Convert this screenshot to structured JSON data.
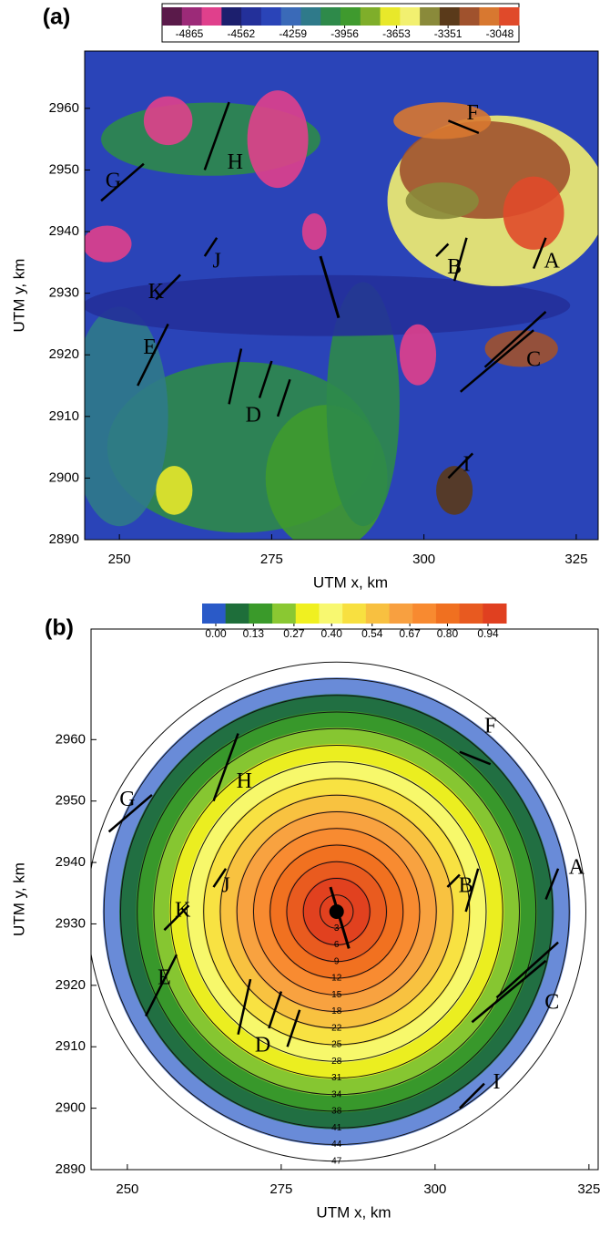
{
  "chart_data": [
    {
      "type": "map",
      "panel_label": "(a)",
      "xlabel": "UTM x, km",
      "ylabel": "UTM y, km",
      "xlim": [
        244.3,
        328.6
      ],
      "ylim": [
        2890,
        2969.3
      ],
      "xticks": [
        250,
        275,
        300,
        325
      ],
      "yticks": [
        2890,
        2900,
        2910,
        2920,
        2930,
        2940,
        2950,
        2960
      ],
      "colorbar": {
        "colors": [
          "#5a1a4a",
          "#9c2a78",
          "#e0408c",
          "#1c1f6e",
          "#23309a",
          "#2a44b8",
          "#3a6ab8",
          "#2f7a8a",
          "#2e8a4a",
          "#3f9a2e",
          "#7fae2a",
          "#e8e82a",
          "#f2f070",
          "#8a8a3a",
          "#5a3a1a",
          "#a0522d",
          "#d87830",
          "#e04a2a"
        ],
        "ticks": [
          -4865,
          -4562,
          -4259,
          -3956,
          -3653,
          -3351,
          -3048
        ]
      },
      "annotations": [
        "F",
        "H",
        "G",
        "J",
        "B",
        "A",
        "K",
        "E",
        "C",
        "D",
        "I"
      ]
    },
    {
      "type": "map",
      "panel_label": "(b)",
      "xlabel": "UTM x, km",
      "ylabel": "UTM y, km",
      "xlim": [
        244.1,
        326.5
      ],
      "ylim": [
        2890,
        2978
      ],
      "xticks": [
        250,
        275,
        300,
        325
      ],
      "yticks": [
        2890,
        2900,
        2910,
        2920,
        2930,
        2940,
        2950,
        2960
      ],
      "colorbar": {
        "colors": [
          "#2a5ac8",
          "#1e6e3a",
          "#3a9a2a",
          "#8ac832",
          "#f0f020",
          "#f8f870",
          "#f8e040",
          "#f8c040",
          "#f8a040",
          "#f88a30",
          "#f07020",
          "#e85a20",
          "#e04020"
        ],
        "ticks": [
          {
            "value": 0,
            "label": "0.00"
          },
          0.13,
          0.27,
          {
            "value": 0.4,
            "label": "0.40"
          },
          0.54,
          0.67,
          {
            "value": 0.8,
            "label": "0.80"
          },
          0.94
        ]
      },
      "contour_labels": [
        3,
        6,
        9,
        12,
        15,
        18,
        22,
        25,
        28,
        31,
        34,
        38,
        41,
        44,
        47
      ],
      "annotations": [
        "F",
        "H",
        "G",
        "J",
        "B",
        "A",
        "K",
        "E",
        "C",
        "D",
        "I"
      ]
    }
  ]
}
